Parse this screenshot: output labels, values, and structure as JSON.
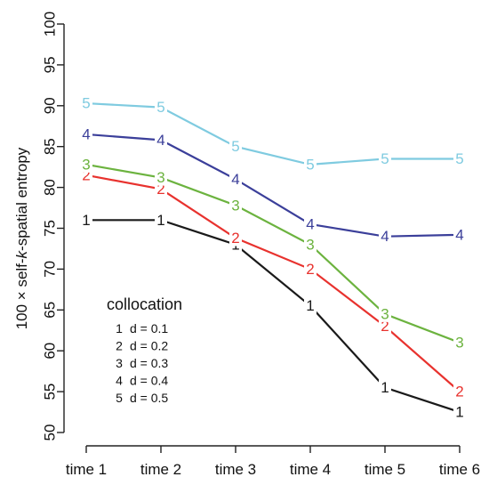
{
  "chart_data": {
    "type": "line",
    "title": "",
    "xlabel": "",
    "ylabel_parts": [
      "100 × self-",
      "k",
      "-spatial entropy"
    ],
    "categories": [
      "time 1",
      "time 2",
      "time 3",
      "time 4",
      "time 5",
      "time 6"
    ],
    "ylim": [
      50,
      100
    ],
    "yticks": [
      50,
      55,
      60,
      65,
      70,
      75,
      80,
      85,
      90,
      95,
      100
    ],
    "series": [
      {
        "marker": "1",
        "color": "#1a1a1a",
        "values": [
          76.0,
          76.0,
          73.0,
          65.5,
          55.5,
          52.5
        ]
      },
      {
        "marker": "2",
        "color": "#e8322e",
        "values": [
          81.5,
          79.8,
          73.8,
          70.0,
          63.0,
          55.0
        ]
      },
      {
        "marker": "3",
        "color": "#6cb33f",
        "values": [
          82.8,
          81.2,
          77.8,
          73.0,
          64.5,
          61.0
        ]
      },
      {
        "marker": "4",
        "color": "#3b3f9a",
        "values": [
          86.5,
          85.8,
          81.0,
          75.5,
          74.0,
          74.2
        ]
      },
      {
        "marker": "5",
        "color": "#7fcbe0",
        "values": [
          90.3,
          89.8,
          85.0,
          82.8,
          83.5,
          83.5
        ]
      }
    ],
    "grid": false,
    "legend": {
      "title": "collocation",
      "position": "lower-left",
      "entries": [
        {
          "marker": "1",
          "label": "d = 0.1"
        },
        {
          "marker": "2",
          "label": "d = 0.2"
        },
        {
          "marker": "3",
          "label": "d = 0.3"
        },
        {
          "marker": "4",
          "label": "d = 0.4"
        },
        {
          "marker": "5",
          "label": "d = 0.5"
        }
      ]
    }
  }
}
